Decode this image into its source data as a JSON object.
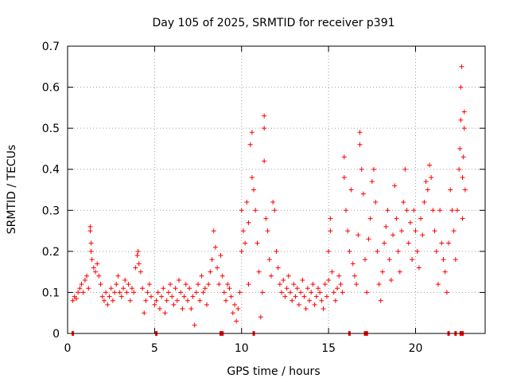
{
  "chart_data": {
    "type": "scatter",
    "title": "Day 105 of 2025, SRMTID for receiver p391",
    "xlabel": "GPS time / hours",
    "ylabel": "SRMTID / TECUs",
    "xlim": [
      0,
      24
    ],
    "ylim": [
      0,
      0.7
    ],
    "x_ticks": [
      0,
      5,
      10,
      15,
      20
    ],
    "y_ticks": [
      0,
      0.1,
      0.2,
      0.3,
      0.4,
      0.5,
      0.6,
      0.7
    ],
    "x_tick_labels": [
      "0",
      "5",
      "10",
      "15",
      "20"
    ],
    "y_tick_labels": [
      "0",
      "0.1",
      "0.2",
      "0.3",
      "0.4",
      "0.5",
      "0.6",
      "0.7"
    ],
    "grid": true,
    "marker": "+",
    "color": "#ff0000",
    "series": [
      {
        "name": "SRMTID",
        "points": [
          [
            0.3,
            0.08
          ],
          [
            0.4,
            0.09
          ],
          [
            0.5,
            0.085
          ],
          [
            0.6,
            0.1
          ],
          [
            0.7,
            0.11
          ],
          [
            0.8,
            0.12
          ],
          [
            0.9,
            0.1
          ],
          [
            1.0,
            0.13
          ],
          [
            1.1,
            0.14
          ],
          [
            1.2,
            0.11
          ],
          [
            1.3,
            0.26
          ],
          [
            1.3,
            0.25
          ],
          [
            1.35,
            0.22
          ],
          [
            1.35,
            0.2
          ],
          [
            1.4,
            0.18
          ],
          [
            1.5,
            0.16
          ],
          [
            1.6,
            0.15
          ],
          [
            1.7,
            0.17
          ],
          [
            1.8,
            0.14
          ],
          [
            1.9,
            0.12
          ],
          [
            2.0,
            0.09
          ],
          [
            2.1,
            0.08
          ],
          [
            2.2,
            0.1
          ],
          [
            2.3,
            0.07
          ],
          [
            2.4,
            0.09
          ],
          [
            2.5,
            0.11
          ],
          [
            2.6,
            0.08
          ],
          [
            2.7,
            0.1
          ],
          [
            2.8,
            0.12
          ],
          [
            2.9,
            0.14
          ],
          [
            3.0,
            0.1
          ],
          [
            3.1,
            0.09
          ],
          [
            3.2,
            0.11
          ],
          [
            3.3,
            0.13
          ],
          [
            3.4,
            0.1
          ],
          [
            3.5,
            0.12
          ],
          [
            3.6,
            0.08
          ],
          [
            3.7,
            0.11
          ],
          [
            3.8,
            0.1
          ],
          [
            3.9,
            0.16
          ],
          [
            4.0,
            0.19
          ],
          [
            4.05,
            0.2
          ],
          [
            4.1,
            0.17
          ],
          [
            4.2,
            0.15
          ],
          [
            4.3,
            0.11
          ],
          [
            4.4,
            0.05
          ],
          [
            4.5,
            0.08
          ],
          [
            4.6,
            0.1
          ],
          [
            4.7,
            0.12
          ],
          [
            4.8,
            0.09
          ],
          [
            5.0,
            0.07
          ],
          [
            5.1,
            0.08
          ],
          [
            5.2,
            0.1
          ],
          [
            5.3,
            0.06
          ],
          [
            5.4,
            0.09
          ],
          [
            5.5,
            0.11
          ],
          [
            5.6,
            0.05
          ],
          [
            5.7,
            0.08
          ],
          [
            5.8,
            0.1
          ],
          [
            5.9,
            0.12
          ],
          [
            6.0,
            0.09
          ],
          [
            6.1,
            0.07
          ],
          [
            6.2,
            0.11
          ],
          [
            6.3,
            0.08
          ],
          [
            6.4,
            0.13
          ],
          [
            6.5,
            0.1
          ],
          [
            6.6,
            0.06
          ],
          [
            6.7,
            0.09
          ],
          [
            6.8,
            0.12
          ],
          [
            6.9,
            0.08
          ],
          [
            7.0,
            0.11
          ],
          [
            7.1,
            0.06
          ],
          [
            7.2,
            0.09
          ],
          [
            7.3,
            0.02
          ],
          [
            7.4,
            0.1
          ],
          [
            7.5,
            0.12
          ],
          [
            7.6,
            0.08
          ],
          [
            7.7,
            0.14
          ],
          [
            7.8,
            0.1
          ],
          [
            7.9,
            0.11
          ],
          [
            8.0,
            0.07
          ],
          [
            8.1,
            0.12
          ],
          [
            8.2,
            0.15
          ],
          [
            8.3,
            0.18
          ],
          [
            8.4,
            0.25
          ],
          [
            8.5,
            0.21
          ],
          [
            8.6,
            0.16
          ],
          [
            8.7,
            0.12
          ],
          [
            8.8,
            0.19
          ],
          [
            8.9,
            0.14
          ],
          [
            9.0,
            0.1
          ],
          [
            9.1,
            0.08
          ],
          [
            9.2,
            0.12
          ],
          [
            9.3,
            0.11
          ],
          [
            9.4,
            0.09
          ],
          [
            9.5,
            0.05
          ],
          [
            9.6,
            0.07
          ],
          [
            9.7,
            0.03
          ],
          [
            9.8,
            0.06
          ],
          [
            9.9,
            0.1
          ],
          [
            10.0,
            0.2
          ],
          [
            10.0,
            0.3
          ],
          [
            10.1,
            0.25
          ],
          [
            10.2,
            0.22
          ],
          [
            10.3,
            0.32
          ],
          [
            10.4,
            0.27
          ],
          [
            10.4,
            0.12
          ],
          [
            10.5,
            0.46
          ],
          [
            10.6,
            0.49
          ],
          [
            10.6,
            0.38
          ],
          [
            10.7,
            0.35
          ],
          [
            10.8,
            0.3
          ],
          [
            10.9,
            0.22
          ],
          [
            11.0,
            0.15
          ],
          [
            11.1,
            0.04
          ],
          [
            11.2,
            0.1
          ],
          [
            11.3,
            0.5
          ],
          [
            11.3,
            0.53
          ],
          [
            11.3,
            0.42
          ],
          [
            11.4,
            0.28
          ],
          [
            11.5,
            0.25
          ],
          [
            11.6,
            0.18
          ],
          [
            11.7,
            0.14
          ],
          [
            11.8,
            0.32
          ],
          [
            11.9,
            0.3
          ],
          [
            12.0,
            0.2
          ],
          [
            12.1,
            0.16
          ],
          [
            12.2,
            0.12
          ],
          [
            12.3,
            0.1
          ],
          [
            12.4,
            0.13
          ],
          [
            12.5,
            0.09
          ],
          [
            12.6,
            0.11
          ],
          [
            12.7,
            0.14
          ],
          [
            12.8,
            0.1
          ],
          [
            12.9,
            0.08
          ],
          [
            13.0,
            0.12
          ],
          [
            13.1,
            0.09
          ],
          [
            13.2,
            0.11
          ],
          [
            13.3,
            0.07
          ],
          [
            13.4,
            0.1
          ],
          [
            13.5,
            0.13
          ],
          [
            13.6,
            0.09
          ],
          [
            13.7,
            0.06
          ],
          [
            13.8,
            0.11
          ],
          [
            13.9,
            0.08
          ],
          [
            14.0,
            0.1
          ],
          [
            14.1,
            0.12
          ],
          [
            14.2,
            0.07
          ],
          [
            14.3,
            0.09
          ],
          [
            14.4,
            0.11
          ],
          [
            14.5,
            0.1
          ],
          [
            14.6,
            0.08
          ],
          [
            14.7,
            0.06
          ],
          [
            14.8,
            0.12
          ],
          [
            14.9,
            0.09
          ],
          [
            15.0,
            0.13
          ],
          [
            15.0,
            0.2
          ],
          [
            15.1,
            0.28
          ],
          [
            15.1,
            0.25
          ],
          [
            15.2,
            0.15
          ],
          [
            15.3,
            0.1
          ],
          [
            15.4,
            0.08
          ],
          [
            15.5,
            0.11
          ],
          [
            15.6,
            0.14
          ],
          [
            15.7,
            0.12
          ],
          [
            15.8,
            0.1
          ],
          [
            15.9,
            0.43
          ],
          [
            15.9,
            0.38
          ],
          [
            16.0,
            0.3
          ],
          [
            16.1,
            0.25
          ],
          [
            16.2,
            0.2
          ],
          [
            16.3,
            0.35
          ],
          [
            16.4,
            0.17
          ],
          [
            16.5,
            0.14
          ],
          [
            16.6,
            0.12
          ],
          [
            16.7,
            0.24
          ],
          [
            16.8,
            0.46
          ],
          [
            16.8,
            0.49
          ],
          [
            16.9,
            0.4
          ],
          [
            17.0,
            0.34
          ],
          [
            17.1,
            0.18
          ],
          [
            17.2,
            0.1
          ],
          [
            17.3,
            0.23
          ],
          [
            17.4,
            0.28
          ],
          [
            17.5,
            0.37
          ],
          [
            17.6,
            0.4
          ],
          [
            17.7,
            0.32
          ],
          [
            17.8,
            0.2
          ],
          [
            17.9,
            0.12
          ],
          [
            18.0,
            0.08
          ],
          [
            18.1,
            0.15
          ],
          [
            18.2,
            0.22
          ],
          [
            18.3,
            0.26
          ],
          [
            18.4,
            0.3
          ],
          [
            18.5,
            0.18
          ],
          [
            18.6,
            0.13
          ],
          [
            18.7,
            0.24
          ],
          [
            18.8,
            0.36
          ],
          [
            18.9,
            0.28
          ],
          [
            19.0,
            0.2
          ],
          [
            19.1,
            0.15
          ],
          [
            19.2,
            0.25
          ],
          [
            19.3,
            0.32
          ],
          [
            19.4,
            0.4
          ],
          [
            19.5,
            0.3
          ],
          [
            19.6,
            0.22
          ],
          [
            19.7,
            0.27
          ],
          [
            19.8,
            0.18
          ],
          [
            19.9,
            0.3
          ],
          [
            20.0,
            0.25
          ],
          [
            20.1,
            0.2
          ],
          [
            20.2,
            0.16
          ],
          [
            20.3,
            0.28
          ],
          [
            20.4,
            0.24
          ],
          [
            20.5,
            0.32
          ],
          [
            20.6,
            0.37
          ],
          [
            20.7,
            0.35
          ],
          [
            20.8,
            0.41
          ],
          [
            20.9,
            0.38
          ],
          [
            21.0,
            0.3
          ],
          [
            21.1,
            0.25
          ],
          [
            21.2,
            0.2
          ],
          [
            21.3,
            0.12
          ],
          [
            21.4,
            0.3
          ],
          [
            21.5,
            0.22
          ],
          [
            21.6,
            0.18
          ],
          [
            21.7,
            0.15
          ],
          [
            21.8,
            0.1
          ],
          [
            21.9,
            0.22
          ],
          [
            22.0,
            0.35
          ],
          [
            22.1,
            0.3
          ],
          [
            22.2,
            0.25
          ],
          [
            22.3,
            0.18
          ],
          [
            22.4,
            0.3
          ],
          [
            22.5,
            0.4
          ],
          [
            22.55,
            0.45
          ],
          [
            22.6,
            0.52
          ],
          [
            22.6,
            0.6
          ],
          [
            22.65,
            0.65
          ],
          [
            22.7,
            0.38
          ],
          [
            22.7,
            0.28
          ],
          [
            22.75,
            0.43
          ],
          [
            22.8,
            0.54
          ],
          [
            22.8,
            0.5
          ],
          [
            22.85,
            0.35
          ]
        ]
      }
    ],
    "zero_markers_x": [
      0.3,
      5.1,
      8.8,
      8.9,
      10.7,
      16.2,
      17.1,
      17.2,
      21.9,
      22.3,
      22.6,
      22.7
    ]
  }
}
